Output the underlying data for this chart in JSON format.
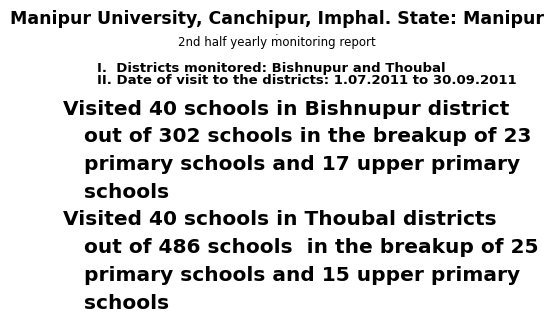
{
  "background_color": "#ffffff",
  "title_line1": "Manipur University, Canchipur, Imphal. State: Manipur",
  "title_line2": ".",
  "title_line3": "2nd half yearly monitoring report",
  "subtitle_line1": "I.  Districts monitored: Bishnupur and Thoubal",
  "subtitle_line2": "II. Date of visit to the districts: 1.07.2011 to 30.09.2011",
  "body_line1": "Visited 40 schools in Bishnupur district",
  "body_line2": "   out of 302 schools in the breakup of 23",
  "body_line3": "   primary schools and 17 upper primary",
  "body_line4": "   schools",
  "body_line5": "Visited 40 schools in Thoubal districts",
  "body_line6": "   out of 486 schools  in the breakup of 25",
  "body_line7": "   primary schools and 15 upper primary",
  "body_line8": "   schools",
  "title_fontsize": 12.5,
  "dot_fontsize": 8,
  "report_fontsize": 8.5,
  "subtitle_fontsize": 9.5,
  "body_fontsize": 14.5,
  "text_color": "#000000"
}
